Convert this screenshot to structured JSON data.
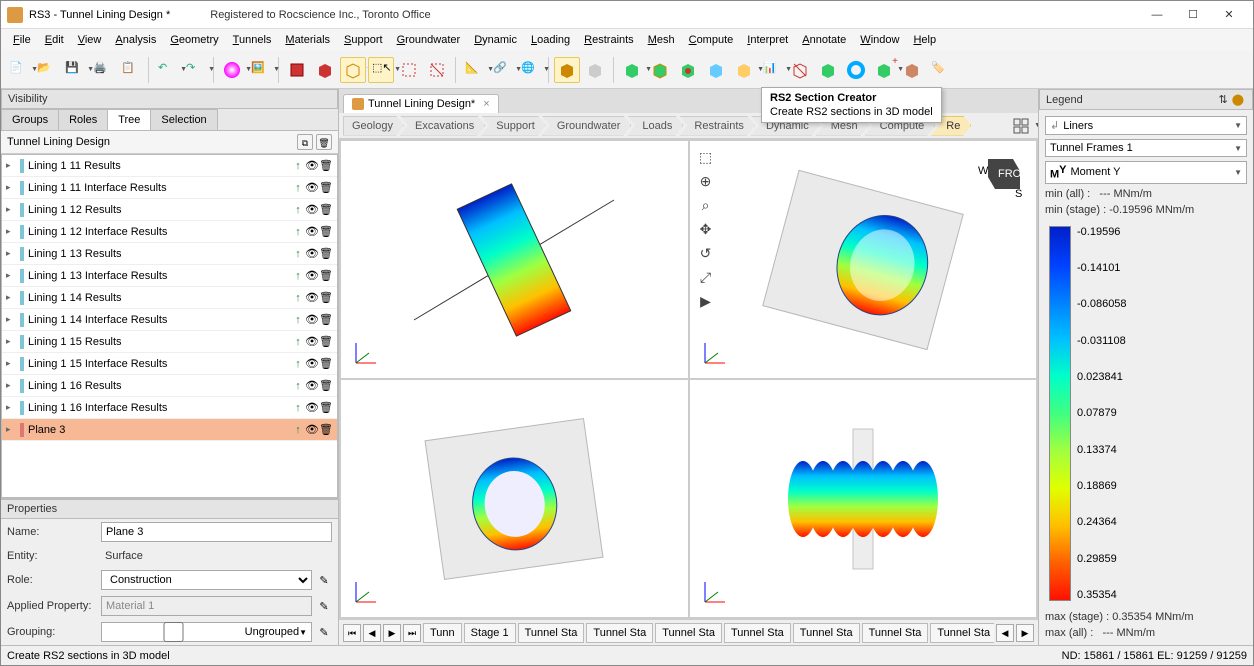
{
  "window": {
    "title": "RS3 - Tunnel Lining Design *",
    "registration": "Registered to Rocscience Inc., Toronto Office"
  },
  "menu": [
    "File",
    "Edit",
    "View",
    "Analysis",
    "Geometry",
    "Tunnels",
    "Materials",
    "Support",
    "Groundwater",
    "Dynamic",
    "Loading",
    "Restraints",
    "Mesh",
    "Compute",
    "Interpret",
    "Annotate",
    "Window",
    "Help"
  ],
  "tooltip": {
    "title": "RS2 Section Creator",
    "desc": "Create RS2 sections in 3D model"
  },
  "doc_tab": {
    "label": "Tunnel Lining Design*"
  },
  "breadcrumb": [
    "Geology",
    "Excavations",
    "Support",
    "Groundwater",
    "Loads",
    "Restraints",
    "Dynamic",
    "Mesh",
    "Compute",
    "Re"
  ],
  "breadcrumb_active": 9,
  "visibility": {
    "header": "Visibility",
    "tabs": [
      "Groups",
      "Roles",
      "Tree",
      "Selection"
    ],
    "active_tab": 2,
    "tree_title": "Tunnel Lining Design",
    "items": [
      {
        "label": "Lining 1 11 Results",
        "sel": false
      },
      {
        "label": "Lining 1 11 Interface Results",
        "sel": false
      },
      {
        "label": "Lining 1 12 Results",
        "sel": false
      },
      {
        "label": "Lining 1 12 Interface Results",
        "sel": false
      },
      {
        "label": "Lining 1 13 Results",
        "sel": false
      },
      {
        "label": "Lining 1 13 Interface Results",
        "sel": false
      },
      {
        "label": "Lining 1 14 Results",
        "sel": false
      },
      {
        "label": "Lining 1 14 Interface Results",
        "sel": false
      },
      {
        "label": "Lining 1 15 Results",
        "sel": false
      },
      {
        "label": "Lining 1 15 Interface Results",
        "sel": false
      },
      {
        "label": "Lining 1 16 Results",
        "sel": false
      },
      {
        "label": "Lining 1 16 Interface Results",
        "sel": false
      },
      {
        "label": "Plane 3",
        "sel": true
      }
    ]
  },
  "properties": {
    "header": "Properties",
    "name_label": "Name:",
    "name_value": "Plane 3",
    "entity_label": "Entity:",
    "entity_value": "Surface",
    "role_label": "Role:",
    "role_value": "Construction",
    "applied_label": "Applied Property:",
    "applied_value": "Material 1",
    "grouping_label": "Grouping:",
    "grouping_value": "Ungrouped"
  },
  "stages": {
    "tabs": [
      "Tunn",
      "Stage 1",
      "Tunnel Sta",
      "Tunnel Sta",
      "Tunnel Sta",
      "Tunnel Sta",
      "Tunnel Sta",
      "Tunnel Sta",
      "Tunnel Sta",
      "Tunnel Sta",
      "Tunnel Sta"
    ],
    "active": 10
  },
  "legend": {
    "header": "Legend",
    "liners": "Liners",
    "frames": "Tunnel Frames 1",
    "moment": "Moment Y",
    "min_all_label": "min (all) :",
    "min_all_value": "--- MNm/m",
    "min_stage_label": "min (stage) :",
    "min_stage_value": "-0.19596 MNm/m",
    "max_stage_label": "max (stage) :",
    "max_stage_value": "0.35354 MNm/m",
    "max_all_label": "max (all) :",
    "max_all_value": "--- MNm/m",
    "ticks": [
      "-0.19596",
      "-0.14101",
      "-0.086058",
      "-0.031108",
      "0.023841",
      "0.07879",
      "0.13374",
      "0.18869",
      "0.24364",
      "0.29859",
      "0.35354"
    ],
    "colors": [
      "#0020c8",
      "#0040ff",
      "#0080ff",
      "#00c0ff",
      "#00ffc8",
      "#40ff80",
      "#a0ff40",
      "#e0ff00",
      "#ffc000",
      "#ff6000",
      "#ff1000"
    ]
  },
  "status": {
    "left": "Create RS2 sections in 3D model",
    "right": "ND: 15861 / 15861  EL: 91259 / 91259"
  },
  "viewport": {
    "tool_icons": [
      "⬚",
      "⊕",
      "⌕",
      "✥",
      "↺",
      "⤢",
      "▶"
    ],
    "orient_label": "FRONT"
  }
}
